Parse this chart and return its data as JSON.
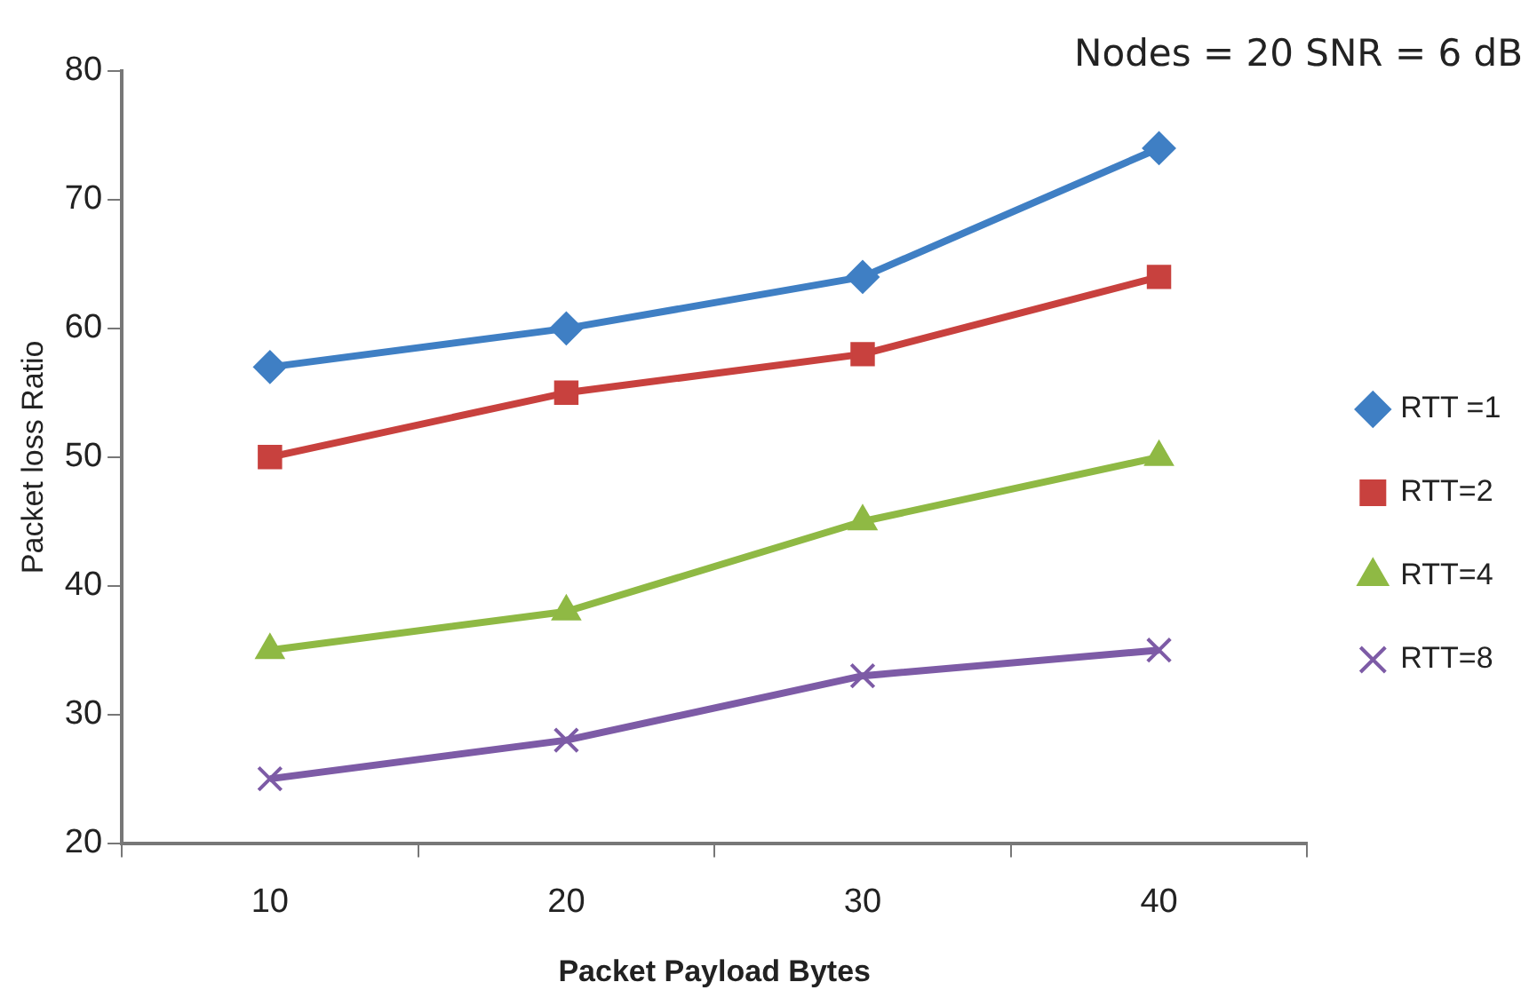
{
  "chart_data": {
    "type": "line",
    "xlabel": "Packet Payload Bytes",
    "ylabel": "Packet loss Ratio",
    "annotations": [
      "Nodes = 20  SNR = 6 dB"
    ],
    "categories": [
      "10",
      "20",
      "30",
      "40"
    ],
    "series": [
      {
        "name": "RTT =1",
        "color": "#3f7fc4",
        "marker": "diamond",
        "values": [
          57,
          60,
          64,
          74
        ]
      },
      {
        "name": "RTT=2",
        "color": "#c8413e",
        "marker": "square",
        "values": [
          50,
          55,
          58,
          64
        ]
      },
      {
        "name": "RTT=4",
        "color": "#8fb944",
        "marker": "triangle",
        "values": [
          35,
          38,
          45,
          50
        ]
      },
      {
        "name": "RTT=8",
        "color": "#7d5ba6",
        "marker": "cross",
        "values": [
          25,
          28,
          33,
          35
        ]
      }
    ],
    "ylim": [
      20,
      80
    ],
    "yticks": [
      20,
      30,
      40,
      50,
      60,
      70,
      80
    ],
    "grid": false,
    "legend": "right"
  }
}
